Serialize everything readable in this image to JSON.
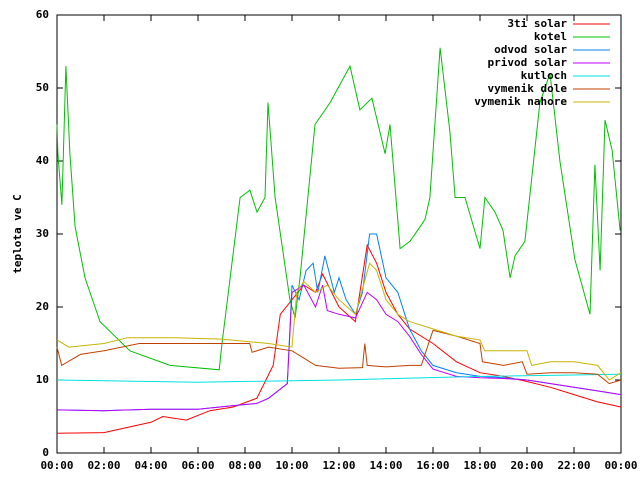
{
  "chart_data": {
    "type": "line",
    "y_label": "teplota ve C",
    "xlim": [
      0,
      24
    ],
    "ylim": [
      0,
      60
    ],
    "xticks": [
      {
        "value": 0,
        "label": "00:00"
      },
      {
        "value": 2,
        "label": "02:00"
      },
      {
        "value": 4,
        "label": "04:00"
      },
      {
        "value": 6,
        "label": "06:00"
      },
      {
        "value": 8,
        "label": "08:00"
      },
      {
        "value": 10,
        "label": "10:00"
      },
      {
        "value": 12,
        "label": "12:00"
      },
      {
        "value": 14,
        "label": "14:00"
      },
      {
        "value": 16,
        "label": "16:00"
      },
      {
        "value": 18,
        "label": "18:00"
      },
      {
        "value": 20,
        "label": "20:00"
      },
      {
        "value": 22,
        "label": "22:00"
      },
      {
        "value": 24,
        "label": "00:00"
      }
    ],
    "yticks": [
      0,
      10,
      20,
      30,
      40,
      50,
      60
    ],
    "legend": "top-right",
    "grid": false,
    "series": [
      {
        "name": "3ti solar",
        "color": "#ff0000",
        "x": [
          0,
          2,
          3,
          4,
          4.5,
          5.5,
          6.5,
          7.5,
          8.5,
          9.2,
          9.5,
          10,
          10.5,
          11,
          11.3,
          12,
          12.7,
          13.2,
          13.6,
          14,
          14.5,
          15,
          16,
          17,
          18,
          19,
          20,
          21,
          22,
          23,
          24
        ],
        "values": [
          2.7,
          2.8,
          3.5,
          4.2,
          5,
          4.5,
          5.8,
          6.3,
          7.5,
          12,
          19,
          21,
          23,
          22,
          24.5,
          20,
          18,
          28.5,
          26,
          22,
          19,
          17,
          15,
          12.5,
          11,
          10.5,
          9.8,
          9,
          8,
          7,
          6.3
        ]
      },
      {
        "name": "kotel",
        "color": "#00c000",
        "x": [
          0,
          0.04,
          0.21,
          0.38,
          0.55,
          0.77,
          1.19,
          1.83,
          3.1,
          4.81,
          6.9,
          7.02,
          7.79,
          8.21,
          8.51,
          8.85,
          8.98,
          9.28,
          9.91,
          10.13,
          10.34,
          10.98,
          11.62,
          12.47,
          12.89,
          13.4,
          13.96,
          14.17,
          14.6,
          15.02,
          15.45,
          15.66,
          15.87,
          16.3,
          16.72,
          16.94,
          17.36,
          18,
          18.21,
          18.64,
          18.98,
          19.28,
          19.49,
          19.91,
          20.55,
          20.98,
          21.4,
          22.04,
          22.68,
          22.89,
          23.11,
          23.32,
          23.62,
          23.96
        ],
        "values": [
          45,
          41,
          34,
          53,
          41,
          31,
          24,
          18,
          14,
          12,
          11.4,
          15,
          35,
          36,
          33,
          35,
          48,
          35,
          21,
          18.5,
          24,
          45,
          48,
          53,
          47,
          48.6,
          41,
          45,
          28,
          29,
          31,
          32,
          35,
          55.5,
          44,
          35,
          35,
          28,
          35,
          33,
          30.5,
          24,
          27,
          29,
          48,
          52,
          40,
          26.5,
          19,
          39.5,
          25,
          45.6,
          41.5,
          30.5
        ]
      },
      {
        "name": "odvod solar",
        "color": "#0080ff",
        "x": [
          0,
          2,
          4,
          6,
          7.5,
          8.5,
          9,
          9.8,
          10,
          10.3,
          10.6,
          10.9,
          11.1,
          11.4,
          11.8,
          12,
          12.3,
          12.7,
          13,
          13.3,
          13.6,
          14,
          14.5,
          15,
          15.5,
          16,
          17,
          18,
          19,
          20,
          21,
          22,
          23,
          24
        ],
        "values": [
          5.9,
          5.8,
          6,
          6,
          6.5,
          6.8,
          7.5,
          9.5,
          23,
          21,
          25,
          26,
          22,
          27,
          22,
          24,
          21,
          19,
          22,
          30,
          30,
          24,
          22,
          17,
          14,
          12,
          11,
          10.5,
          10.3,
          10,
          9.5,
          9,
          8.5,
          8
        ]
      },
      {
        "name": "privod solar",
        "color": "#c000ff",
        "x": [
          0,
          2,
          4,
          6,
          7.5,
          8.5,
          9,
          9.8,
          10,
          10.5,
          11,
          11.3,
          11.5,
          12,
          12.7,
          13.2,
          13.6,
          14,
          14.5,
          15,
          15.5,
          16,
          17,
          18,
          19,
          20,
          21,
          22,
          23,
          24
        ],
        "values": [
          5.9,
          5.8,
          6,
          6,
          6.5,
          6.8,
          7.5,
          9.5,
          22,
          23,
          20,
          23,
          19.5,
          19,
          18.5,
          22,
          21,
          19,
          18,
          16,
          13.5,
          11.5,
          10.5,
          10.3,
          10.2,
          10,
          9.5,
          9,
          8.5,
          8
        ]
      },
      {
        "name": "kutloch",
        "color": "#00e0e0",
        "x": [
          0,
          6,
          12,
          18,
          24
        ],
        "values": [
          10,
          9.7,
          10,
          10.5,
          10.8
        ]
      },
      {
        "name": "vymenik dole",
        "color": "#c04000",
        "x": [
          0,
          0.2,
          1,
          2,
          3.5,
          5,
          7,
          8.2,
          8.3,
          9,
          10,
          10.5,
          11,
          12,
          13,
          13.1,
          13.2,
          14,
          15,
          15.5,
          16,
          17,
          18,
          18.1,
          19,
          19.8,
          20,
          21,
          22,
          23,
          23.5,
          24
        ],
        "values": [
          14.5,
          12,
          13.5,
          14,
          15,
          15,
          15,
          15,
          13.8,
          14.5,
          14,
          13,
          12,
          11.6,
          11.7,
          15,
          12,
          11.8,
          12,
          12,
          16.8,
          16,
          15,
          12.5,
          12,
          12.5,
          10.8,
          11,
          11,
          10.8,
          9.5,
          10
        ]
      },
      {
        "name": "vymenik nahore",
        "color": "#c8b400",
        "x": [
          0,
          0.5,
          2,
          3,
          5,
          7,
          9,
          10,
          10.2,
          10.5,
          11,
          11.5,
          12,
          12.7,
          13.3,
          13.6,
          14,
          14.5,
          15,
          16,
          17,
          18,
          18.2,
          20,
          20.2,
          21,
          22,
          23,
          23.5,
          24
        ],
        "values": [
          15.5,
          14.5,
          15,
          15.8,
          15.8,
          15.6,
          15,
          14.5,
          22,
          23.5,
          22,
          23,
          21,
          19,
          26,
          25,
          21,
          19,
          18,
          17,
          16,
          15.5,
          14,
          14,
          12,
          12.5,
          12.5,
          12,
          10,
          11
        ]
      }
    ]
  }
}
